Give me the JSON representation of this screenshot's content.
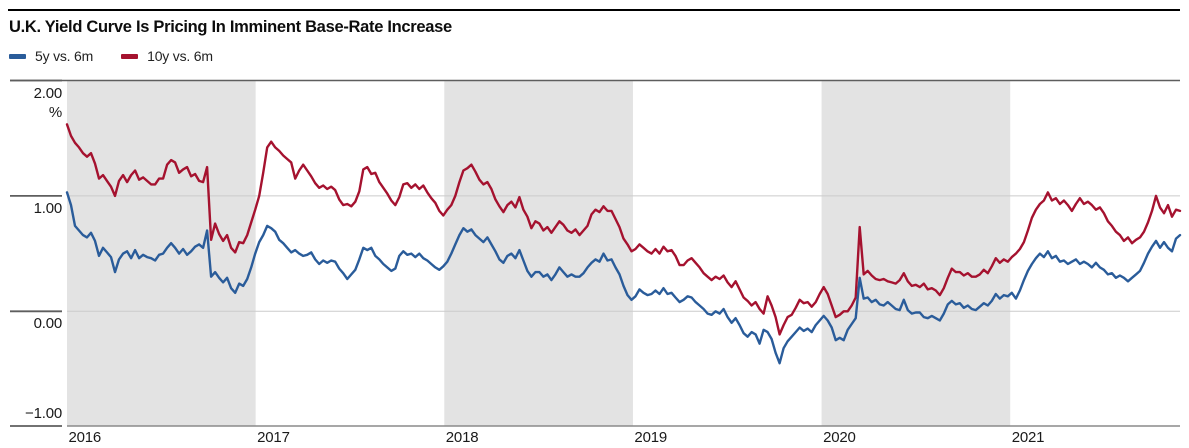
{
  "header": {
    "title": "U.K. Yield Curve Is Pricing In Imminent Base-Rate Increase"
  },
  "legend": {
    "items": [
      {
        "label": "5y vs. 6m",
        "color": "#2A5C9A"
      },
      {
        "label": "10y vs. 6m",
        "color": "#A5122F"
      }
    ]
  },
  "chart_data": {
    "type": "line",
    "title": "U.K. Yield Curve Is Pricing In Imminent Base-Rate Increase",
    "grid": "horizontal",
    "legend_position": "top-left",
    "x_axis": {
      "tick_labels": [
        "2016",
        "2017",
        "2018",
        "2019",
        "2020",
        "2021"
      ],
      "range_years": [
        2016.0,
        2021.9
      ],
      "shaded_year_indices": [
        0,
        2,
        4
      ],
      "band_color": "#E3E3E3"
    },
    "y_axis": {
      "unit": "%",
      "tick_labels": [
        "2.00",
        "1.00",
        "0.00",
        "−1.00"
      ],
      "tick_values": [
        2,
        1,
        0,
        -1
      ],
      "range": [
        -1,
        2
      ]
    },
    "sampling": {
      "x_start_year": 2016.0,
      "x_end_year": 2021.9,
      "n_points": 279,
      "spacing": "uniform"
    },
    "series": [
      {
        "name": "10y vs. 6m",
        "color": "#A5122F",
        "values": [
          1.62,
          1.52,
          1.46,
          1.42,
          1.37,
          1.34,
          1.37,
          1.28,
          1.15,
          1.18,
          1.13,
          1.08,
          1.0,
          1.13,
          1.18,
          1.12,
          1.18,
          1.22,
          1.14,
          1.16,
          1.13,
          1.1,
          1.1,
          1.15,
          1.15,
          1.27,
          1.31,
          1.29,
          1.2,
          1.23,
          1.25,
          1.17,
          1.19,
          1.13,
          1.12,
          1.25,
          0.62,
          0.76,
          0.67,
          0.61,
          0.66,
          0.55,
          0.51,
          0.6,
          0.59,
          0.66,
          0.77,
          0.88,
          1.0,
          1.2,
          1.42,
          1.47,
          1.42,
          1.39,
          1.35,
          1.32,
          1.29,
          1.15,
          1.22,
          1.27,
          1.22,
          1.17,
          1.11,
          1.07,
          1.09,
          1.06,
          1.08,
          1.05,
          0.97,
          0.92,
          0.93,
          0.91,
          0.95,
          1.04,
          1.23,
          1.25,
          1.19,
          1.2,
          1.12,
          1.07,
          1.02,
          0.96,
          0.92,
          0.99,
          1.1,
          1.11,
          1.07,
          1.1,
          1.06,
          1.09,
          1.03,
          0.98,
          0.94,
          0.87,
          0.83,
          0.88,
          0.92,
          1.0,
          1.12,
          1.22,
          1.24,
          1.27,
          1.21,
          1.14,
          1.1,
          1.12,
          1.06,
          0.97,
          0.91,
          0.86,
          0.92,
          0.95,
          0.9,
          0.99,
          0.88,
          0.82,
          0.72,
          0.78,
          0.76,
          0.7,
          0.73,
          0.68,
          0.73,
          0.78,
          0.75,
          0.7,
          0.68,
          0.71,
          0.66,
          0.7,
          0.74,
          0.84,
          0.88,
          0.86,
          0.91,
          0.87,
          0.87,
          0.8,
          0.73,
          0.63,
          0.58,
          0.52,
          0.54,
          0.58,
          0.55,
          0.52,
          0.5,
          0.54,
          0.5,
          0.56,
          0.52,
          0.53,
          0.48,
          0.4,
          0.4,
          0.44,
          0.46,
          0.42,
          0.38,
          0.33,
          0.3,
          0.27,
          0.3,
          0.28,
          0.31,
          0.25,
          0.21,
          0.26,
          0.19,
          0.12,
          0.09,
          0.05,
          0.08,
          0.02,
          -0.02,
          0.13,
          0.05,
          -0.05,
          -0.2,
          -0.12,
          -0.05,
          -0.03,
          0.03,
          0.1,
          0.07,
          0.08,
          0.04,
          0.08,
          0.15,
          0.21,
          0.15,
          0.05,
          -0.05,
          -0.03,
          0.0,
          0.0,
          0.05,
          0.12,
          0.73,
          0.32,
          0.35,
          0.31,
          0.28,
          0.27,
          0.28,
          0.26,
          0.25,
          0.24,
          0.27,
          0.33,
          0.26,
          0.22,
          0.23,
          0.21,
          0.24,
          0.19,
          0.2,
          0.18,
          0.14,
          0.2,
          0.29,
          0.37,
          0.34,
          0.34,
          0.31,
          0.33,
          0.3,
          0.3,
          0.32,
          0.36,
          0.33,
          0.39,
          0.46,
          0.42,
          0.45,
          0.43,
          0.47,
          0.5,
          0.54,
          0.6,
          0.7,
          0.81,
          0.88,
          0.93,
          0.96,
          1.03,
          0.96,
          0.98,
          0.93,
          0.96,
          0.92,
          0.87,
          0.93,
          0.98,
          0.93,
          0.95,
          0.92,
          0.88,
          0.9,
          0.85,
          0.78,
          0.74,
          0.69,
          0.66,
          0.61,
          0.64,
          0.59,
          0.62,
          0.64,
          0.69,
          0.77,
          0.87,
          1.0,
          0.9,
          0.85,
          0.92,
          0.82,
          0.88,
          0.87
        ]
      },
      {
        "name": "5y vs. 6m",
        "color": "#2A5C9A",
        "values": [
          1.03,
          0.92,
          0.74,
          0.7,
          0.66,
          0.64,
          0.68,
          0.61,
          0.48,
          0.55,
          0.51,
          0.47,
          0.34,
          0.45,
          0.5,
          0.52,
          0.46,
          0.53,
          0.46,
          0.49,
          0.47,
          0.46,
          0.44,
          0.49,
          0.5,
          0.55,
          0.59,
          0.55,
          0.5,
          0.54,
          0.49,
          0.52,
          0.56,
          0.58,
          0.55,
          0.7,
          0.3,
          0.34,
          0.29,
          0.25,
          0.29,
          0.2,
          0.16,
          0.24,
          0.22,
          0.28,
          0.38,
          0.5,
          0.6,
          0.66,
          0.74,
          0.72,
          0.69,
          0.62,
          0.59,
          0.55,
          0.51,
          0.53,
          0.5,
          0.48,
          0.49,
          0.51,
          0.45,
          0.41,
          0.44,
          0.42,
          0.44,
          0.43,
          0.37,
          0.33,
          0.28,
          0.32,
          0.36,
          0.45,
          0.55,
          0.53,
          0.55,
          0.48,
          0.45,
          0.41,
          0.38,
          0.35,
          0.37,
          0.48,
          0.52,
          0.49,
          0.5,
          0.47,
          0.5,
          0.46,
          0.44,
          0.41,
          0.38,
          0.36,
          0.39,
          0.43,
          0.5,
          0.58,
          0.66,
          0.72,
          0.69,
          0.71,
          0.66,
          0.63,
          0.6,
          0.64,
          0.58,
          0.52,
          0.45,
          0.42,
          0.48,
          0.5,
          0.46,
          0.53,
          0.44,
          0.35,
          0.3,
          0.34,
          0.34,
          0.3,
          0.32,
          0.27,
          0.32,
          0.38,
          0.34,
          0.3,
          0.32,
          0.3,
          0.3,
          0.33,
          0.38,
          0.42,
          0.45,
          0.43,
          0.5,
          0.44,
          0.45,
          0.38,
          0.32,
          0.22,
          0.14,
          0.1,
          0.13,
          0.19,
          0.16,
          0.14,
          0.15,
          0.18,
          0.15,
          0.2,
          0.15,
          0.16,
          0.12,
          0.08,
          0.1,
          0.13,
          0.12,
          0.08,
          0.05,
          0.02,
          -0.02,
          -0.03,
          0.0,
          -0.02,
          0.02,
          -0.05,
          -0.1,
          -0.06,
          -0.12,
          -0.19,
          -0.22,
          -0.18,
          -0.2,
          -0.28,
          -0.16,
          -0.18,
          -0.24,
          -0.36,
          -0.45,
          -0.32,
          -0.26,
          -0.22,
          -0.18,
          -0.14,
          -0.17,
          -0.15,
          -0.18,
          -0.12,
          -0.08,
          -0.04,
          -0.08,
          -0.14,
          -0.25,
          -0.23,
          -0.25,
          -0.16,
          -0.11,
          -0.06,
          0.29,
          0.11,
          0.12,
          0.08,
          0.1,
          0.06,
          0.05,
          0.08,
          0.05,
          0.02,
          0.01,
          0.1,
          0.01,
          -0.02,
          -0.01,
          -0.01,
          -0.05,
          -0.06,
          -0.04,
          -0.06,
          -0.08,
          -0.02,
          0.06,
          0.09,
          0.06,
          0.07,
          0.03,
          0.05,
          0.02,
          0.01,
          0.04,
          0.07,
          0.05,
          0.09,
          0.15,
          0.11,
          0.14,
          0.13,
          0.16,
          0.11,
          0.18,
          0.27,
          0.35,
          0.41,
          0.46,
          0.5,
          0.47,
          0.52,
          0.46,
          0.48,
          0.43,
          0.44,
          0.41,
          0.43,
          0.45,
          0.41,
          0.43,
          0.41,
          0.38,
          0.42,
          0.38,
          0.36,
          0.32,
          0.33,
          0.29,
          0.31,
          0.29,
          0.26,
          0.29,
          0.32,
          0.35,
          0.42,
          0.5,
          0.56,
          0.61,
          0.55,
          0.6,
          0.55,
          0.52,
          0.63,
          0.66
        ]
      }
    ]
  },
  "colors": {
    "band": "#E3E3E3",
    "grid_light": "#CBCBCB",
    "grid_dark": "#5E5E5E",
    "axis_bottom": "#8A8A8A",
    "top_rule": "#000000"
  }
}
